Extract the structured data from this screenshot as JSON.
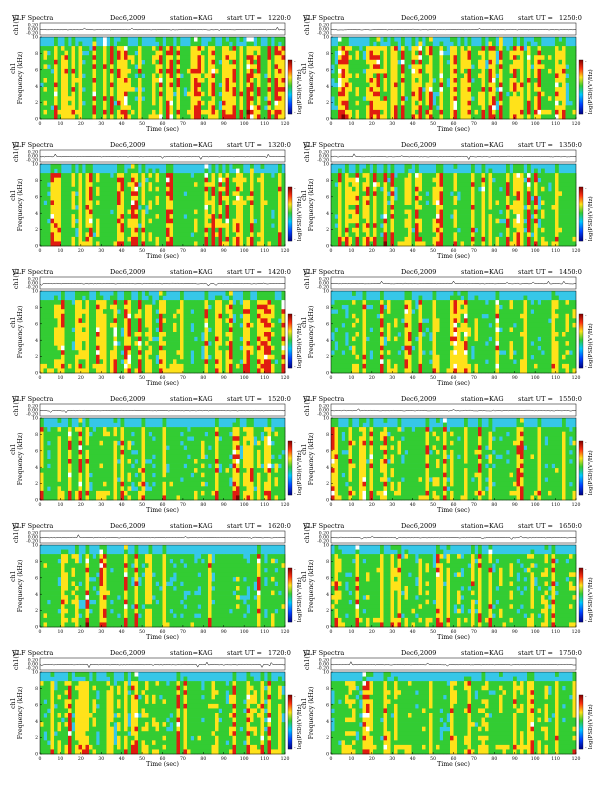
{
  "figure": {
    "header": {
      "title": "VLF Spectra",
      "date": "Dec6,2009",
      "station": "station=KAG",
      "start_prefix": "start  UT  ="
    },
    "labels": {
      "timeseries_ylabel": "ch1(V)",
      "channel_label": "ch1",
      "freq_ylabel": "Frequency  (kHz)",
      "xlabel": "Time  (sec)",
      "colorbar_label": "log(PSD)(V²/Hz)"
    },
    "timeseries_ticks": [
      "0.20",
      "0.00",
      "-0.20"
    ],
    "colorbar_ticks": [
      "-",
      "-"
    ]
  },
  "colors": {
    "background_spectrogram": "#36c7e8",
    "green": "#33cc33",
    "yellow": "#ffe21a",
    "red": "#e01c10",
    "dark_red": "#800000",
    "white_gap": "#ffffff"
  },
  "chart_data": [
    {
      "type": "heatmap",
      "start": "1220:0",
      "x_ticks": [
        "0",
        "10",
        "20",
        "30",
        "40",
        "50",
        "60",
        "70",
        "80",
        "90",
        "100",
        "110",
        "120"
      ],
      "y_ticks": [
        "0",
        "2",
        "4",
        "6",
        "8",
        "10"
      ],
      "xlim": [
        0,
        120
      ],
      "ylim": [
        0,
        10
      ],
      "activity": 0.9
    },
    {
      "type": "heatmap",
      "start": "1250:0",
      "x_ticks": [
        "0",
        "10",
        "20",
        "30",
        "40",
        "50",
        "60",
        "70",
        "80",
        "90",
        "100",
        "110",
        "120"
      ],
      "y_ticks": [
        "0",
        "2",
        "4",
        "6",
        "8",
        "10"
      ],
      "xlim": [
        0,
        120
      ],
      "ylim": [
        0,
        10
      ],
      "activity": 0.8
    },
    {
      "type": "heatmap",
      "start": "1320:0",
      "x_ticks": [
        "0",
        "10",
        "20",
        "30",
        "40",
        "50",
        "60",
        "70",
        "80",
        "90",
        "100",
        "110",
        "120"
      ],
      "y_ticks": [
        "0",
        "2",
        "4",
        "6",
        "8",
        "10"
      ],
      "xlim": [
        0,
        120
      ],
      "ylim": [
        0,
        10
      ],
      "activity": 0.8
    },
    {
      "type": "heatmap",
      "start": "1350:0",
      "x_ticks": [
        "0",
        "10",
        "20",
        "30",
        "40",
        "50",
        "60",
        "70",
        "80",
        "90",
        "100",
        "110",
        "120"
      ],
      "y_ticks": [
        "0",
        "2",
        "4",
        "6",
        "8",
        "10"
      ],
      "xlim": [
        0,
        120
      ],
      "ylim": [
        0,
        10
      ],
      "activity": 0.75
    },
    {
      "type": "heatmap",
      "start": "1420:0",
      "x_ticks": [
        "0",
        "10",
        "20",
        "30",
        "40",
        "50",
        "60",
        "70",
        "80",
        "90",
        "100",
        "110",
        "120"
      ],
      "y_ticks": [
        "0",
        "2",
        "4",
        "6",
        "8",
        "10"
      ],
      "xlim": [
        0,
        120
      ],
      "ylim": [
        0,
        10
      ],
      "activity": 0.6
    },
    {
      "type": "heatmap",
      "start": "1450:0",
      "x_ticks": [
        "0",
        "10",
        "20",
        "30",
        "40",
        "50",
        "60",
        "70",
        "80",
        "90",
        "100",
        "110",
        "120"
      ],
      "y_ticks": [
        "0",
        "2",
        "4",
        "6",
        "8",
        "10"
      ],
      "xlim": [
        0,
        120
      ],
      "ylim": [
        0,
        10
      ],
      "activity": 0.55
    },
    {
      "type": "heatmap",
      "start": "1520:0",
      "x_ticks": [
        "0",
        "10",
        "20",
        "30",
        "40",
        "50",
        "60",
        "70",
        "80",
        "90",
        "100",
        "110",
        "120"
      ],
      "y_ticks": [
        "0",
        "2",
        "4",
        "6",
        "8",
        "10"
      ],
      "xlim": [
        0,
        120
      ],
      "ylim": [
        0,
        10
      ],
      "activity": 0.45
    },
    {
      "type": "heatmap",
      "start": "1550:0",
      "x_ticks": [
        "0",
        "10",
        "20",
        "30",
        "40",
        "50",
        "60",
        "70",
        "80",
        "90",
        "100",
        "110",
        "120"
      ],
      "y_ticks": [
        "0",
        "2",
        "4",
        "6",
        "8",
        "10"
      ],
      "xlim": [
        0,
        120
      ],
      "ylim": [
        0,
        10
      ],
      "activity": 0.5
    },
    {
      "type": "heatmap",
      "start": "1620:0",
      "x_ticks": [
        "0",
        "10",
        "20",
        "30",
        "40",
        "50",
        "60",
        "70",
        "80",
        "90",
        "100",
        "110",
        "120"
      ],
      "y_ticks": [
        "0",
        "2",
        "4",
        "6",
        "8",
        "10"
      ],
      "xlim": [
        0,
        120
      ],
      "ylim": [
        0,
        10
      ],
      "activity": 0.45
    },
    {
      "type": "heatmap",
      "start": "1650:0",
      "x_ticks": [
        "0",
        "10",
        "20",
        "30",
        "40",
        "50",
        "60",
        "70",
        "80",
        "90",
        "100",
        "110",
        "120"
      ],
      "y_ticks": [
        "0",
        "2",
        "4",
        "6",
        "8",
        "10"
      ],
      "xlim": [
        0,
        120
      ],
      "ylim": [
        0,
        10
      ],
      "activity": 0.4
    },
    {
      "type": "heatmap",
      "start": "1720:0",
      "x_ticks": [
        "0",
        "10",
        "20",
        "30",
        "40",
        "50",
        "60",
        "70",
        "80",
        "90",
        "100",
        "110",
        "120"
      ],
      "y_ticks": [
        "0",
        "2",
        "4",
        "6",
        "8",
        "10"
      ],
      "xlim": [
        0,
        120
      ],
      "ylim": [
        0,
        10
      ],
      "activity": 0.4
    },
    {
      "type": "heatmap",
      "start": "1750:0",
      "x_ticks": [
        "0",
        "10",
        "20",
        "30",
        "40",
        "50",
        "60",
        "70",
        "80",
        "90",
        "100",
        "110",
        "120"
      ],
      "y_ticks": [
        "0",
        "2",
        "4",
        "6",
        "8",
        "10"
      ],
      "xlim": [
        0,
        120
      ],
      "ylim": [
        0,
        10
      ],
      "activity": 0.35
    }
  ]
}
